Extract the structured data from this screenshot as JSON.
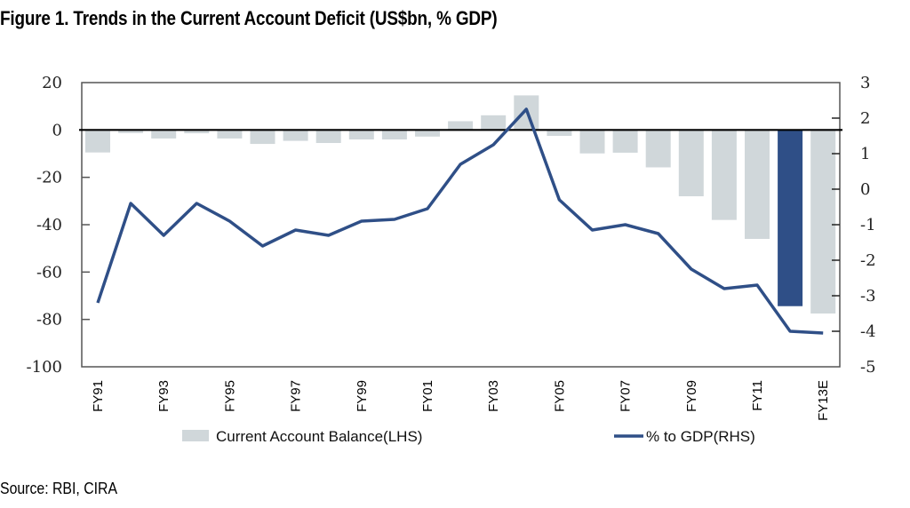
{
  "title": "Figure 1. Trends in the Current Account Deficit (US$bn, % GDP)",
  "source": "Source: RBI, CIRA",
  "colors": {
    "bar": "#d0d7da",
    "bar_highlight": "#2f4f87",
    "line": "#2f4f87",
    "axis": "#555555",
    "zero_line": "#000000"
  },
  "chart_data": {
    "type": "bar+line",
    "title": "Figure 1. Trends in the Current Account Deficit (US$bn, % GDP)",
    "categories": [
      "FY91",
      "FY92",
      "FY93",
      "FY94",
      "FY95",
      "FY96",
      "FY97",
      "FY98",
      "FY99",
      "FY00",
      "FY01",
      "FY02",
      "FY03",
      "FY04",
      "FY05",
      "FY06",
      "FY07",
      "FY08",
      "FY09",
      "FY10",
      "FY11",
      "FY12",
      "FY13E"
    ],
    "tick_labels_shown": [
      "FY91",
      "",
      "FY93",
      "",
      "FY95",
      "",
      "FY97",
      "",
      "FY99",
      "",
      "FY01",
      "",
      "FY03",
      "",
      "FY05",
      "",
      "FY07",
      "",
      "FY09",
      "",
      "FY11",
      "",
      "FY13E"
    ],
    "series": [
      {
        "name": "Current Account Balance(LHS)",
        "type": "bar",
        "axis": "left",
        "highlight_index": 21,
        "values": [
          -9.5,
          -1.3,
          -3.6,
          -1.4,
          -3.6,
          -5.9,
          -4.6,
          -5.5,
          -4.0,
          -4.0,
          -2.8,
          3.7,
          6.2,
          14.6,
          -2.5,
          -9.9,
          -9.6,
          -15.8,
          -28.0,
          -38.0,
          -46.0,
          -74.4,
          -77.5
        ]
      },
      {
        "name": "% to GDP(RHS)",
        "type": "line",
        "axis": "right",
        "values": [
          -3.2,
          -0.4,
          -1.3,
          -0.4,
          -0.9,
          -1.6,
          -1.15,
          -1.3,
          -0.9,
          -0.85,
          -0.55,
          0.7,
          1.25,
          2.25,
          -0.3,
          -1.15,
          -1.0,
          -1.25,
          -2.25,
          -2.8,
          -2.7,
          -4.0,
          -4.05
        ]
      }
    ],
    "y_left": {
      "min": -100,
      "max": 20,
      "ticks": [
        20,
        0,
        -20,
        -40,
        -60,
        -80,
        -100
      ]
    },
    "y_right": {
      "min": -5,
      "max": 3,
      "ticks": [
        3,
        2,
        1,
        0,
        -1,
        -2,
        -3,
        -4,
        -5
      ]
    },
    "xlabel": "",
    "ylabel_left": "",
    "ylabel_right": "",
    "legend": {
      "position": "bottom",
      "items": [
        {
          "label": "Current Account Balance(LHS)",
          "kind": "bar"
        },
        {
          "label": "% to GDP(RHS)",
          "kind": "line"
        }
      ]
    },
    "grid": false
  }
}
